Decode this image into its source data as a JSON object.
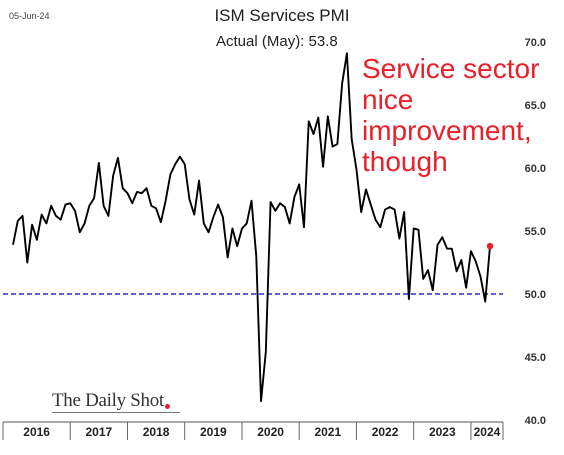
{
  "header": {
    "date_stamp": "05-Jun-24",
    "title": "ISM Services PMI",
    "subtitle": "Actual (May):  53.8"
  },
  "annotation": {
    "text": "Service sector nice improvement, though",
    "color": "#e8202a"
  },
  "watermark": {
    "text": "The Daily Shot"
  },
  "chart_data": {
    "type": "line",
    "title": "ISM Services PMI",
    "ylim": [
      40,
      70
    ],
    "yticks": [
      "40.0",
      "45.0",
      "50.0",
      "55.0",
      "60.0",
      "65.0",
      "70.0"
    ],
    "ytick_values": [
      40,
      45,
      50,
      55,
      60,
      65,
      70
    ],
    "x_axis_labels": [
      "2016",
      "2017",
      "2018",
      "2019",
      "2020",
      "2021",
      "2022",
      "2023",
      "2024"
    ],
    "x_start": "2016-01",
    "grid": false,
    "reference_line": {
      "value": 50,
      "color": "#2b2bd6",
      "style": "dashed"
    },
    "series": [
      {
        "line_color": "#000000",
        "values": [
          53.9,
          55.8,
          56.2,
          52.5,
          55.5,
          54.3,
          56.3,
          55.6,
          57.0,
          56.2,
          55.9,
          57.1,
          57.2,
          56.6,
          54.9,
          55.6,
          57.0,
          57.6,
          60.4,
          57.0,
          56.2,
          59.4,
          60.8,
          58.4,
          58.0,
          57.2,
          58.1,
          58.0,
          58.4,
          57.0,
          56.8,
          55.7,
          57.4,
          59.5,
          60.3,
          60.9,
          60.3,
          57.5,
          56.3,
          59.0,
          55.6,
          54.9,
          56.1,
          57.1,
          56.1,
          52.9,
          55.2,
          53.8,
          55.2,
          55.6,
          57.4,
          53.0,
          41.5,
          45.4,
          57.3,
          56.6,
          57.2,
          56.9,
          55.6,
          57.7,
          58.7,
          55.3,
          63.7,
          62.7,
          64.0,
          60.1,
          64.1,
          61.7,
          61.9,
          66.7,
          69.1,
          62.3,
          59.9,
          56.5,
          58.3,
          57.1,
          55.9,
          55.3,
          56.7,
          56.9,
          56.7,
          54.4,
          56.5,
          49.6,
          55.2,
          55.1,
          51.2,
          51.9,
          50.3,
          53.9,
          54.5,
          53.6,
          53.6,
          51.8,
          52.7,
          50.5,
          53.4,
          52.6,
          51.4,
          49.4,
          53.8
        ],
        "highlight_last": true,
        "highlight_color": "#e8202a"
      }
    ]
  }
}
